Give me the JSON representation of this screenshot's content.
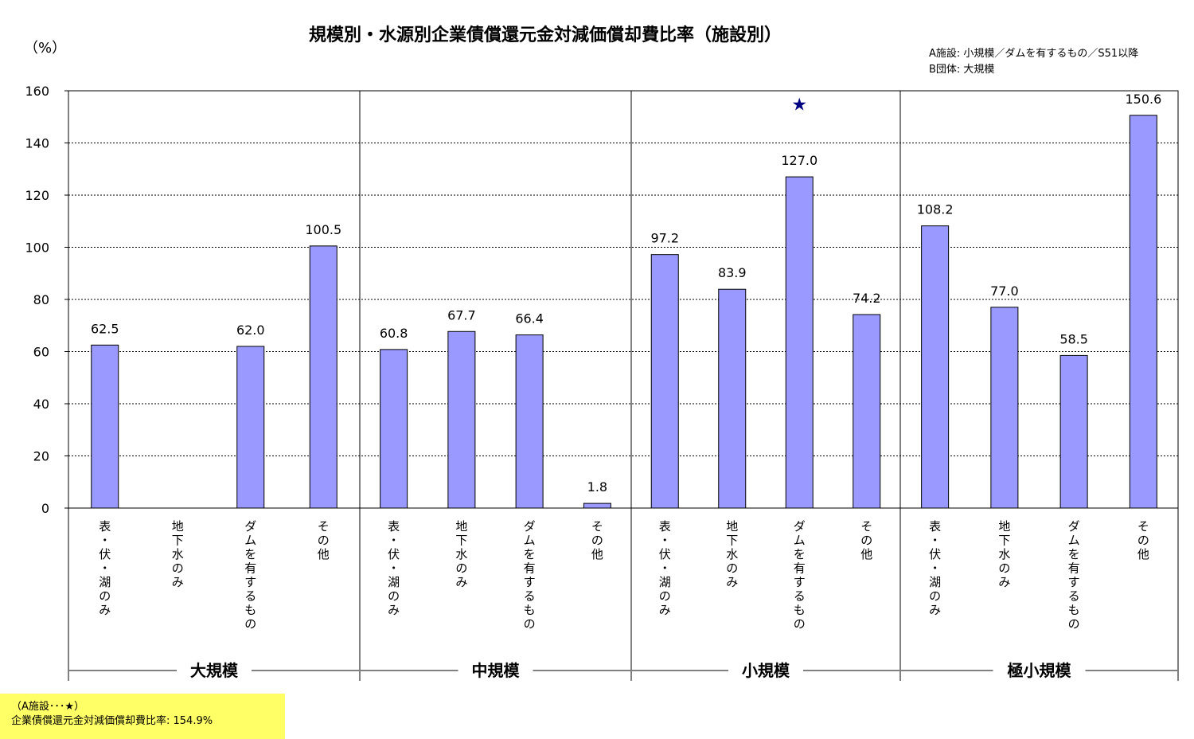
{
  "chart_data": {
    "type": "bar",
    "title": "規模別・水源別企業債償還元金対減価償却費比率（施設別）",
    "ylabel": "（%）",
    "ylim": [
      0,
      160
    ],
    "yticks": [
      0,
      20,
      40,
      60,
      80,
      100,
      120,
      140,
      160
    ],
    "grid": true,
    "groups": [
      {
        "name": "大規模",
        "categories": [
          "表・伏・湖のみ",
          "地下水のみ",
          "ダムを有するもの",
          "その他"
        ],
        "values": [
          62.5,
          null,
          62.0,
          100.5
        ],
        "labels": [
          "62.5",
          "",
          "62.0",
          "100.5"
        ]
      },
      {
        "name": "中規模",
        "categories": [
          "表・伏・湖のみ",
          "地下水のみ",
          "ダムを有するもの",
          "その他"
        ],
        "values": [
          60.8,
          67.7,
          66.4,
          1.8
        ],
        "labels": [
          "60.8",
          "67.7",
          "66.4",
          "1.8"
        ]
      },
      {
        "name": "小規模",
        "categories": [
          "表・伏・湖のみ",
          "地下水のみ",
          "ダムを有するもの",
          "その他"
        ],
        "values": [
          97.2,
          83.9,
          127.0,
          74.2
        ],
        "labels": [
          "97.2",
          "83.9",
          "127.0",
          "74.2"
        ]
      },
      {
        "name": "極小規模",
        "categories": [
          "表・伏・湖のみ",
          "地下水のみ",
          "ダムを有するもの",
          "その他"
        ],
        "values": [
          108.2,
          77.0,
          58.5,
          150.6
        ],
        "labels": [
          "108.2",
          "77.0",
          "58.5",
          "150.6"
        ]
      }
    ],
    "marker": {
      "group": 2,
      "category": 2,
      "value": 154.9,
      "symbol": "★",
      "color": "#000080"
    },
    "bar_color": "#9999ff",
    "bar_border": "#000000"
  },
  "legend_notes": [
    "A施設: 小規模／ダムを有するもの／S51以降",
    "B団体: 大規模"
  ],
  "footnote": {
    "line1": "（A施設･･･★）",
    "line2": "企業債償還元金対減価償却費比率: 154.9%",
    "background": "#ffff66"
  }
}
